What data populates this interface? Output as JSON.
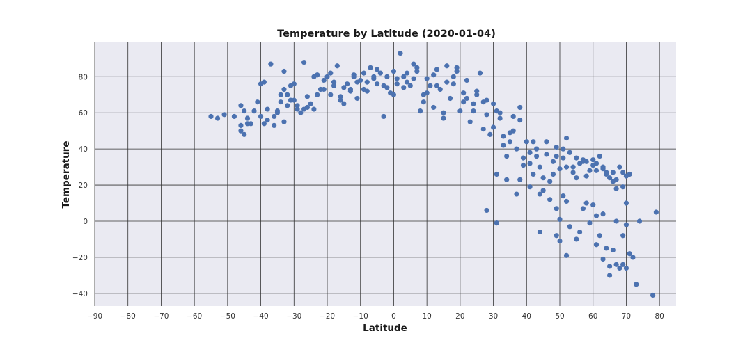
{
  "colors": {
    "background": "#eaeaf2",
    "grid": "#333333",
    "point": "#4c72b0"
  },
  "chart_data": {
    "type": "scatter",
    "title": "Temperature by Latitude (2020-01-04)",
    "xlabel": "Latitude",
    "ylabel": "Temperature",
    "xlim": [
      -90,
      85
    ],
    "ylim": [
      -47,
      99
    ],
    "xticks": [
      -90,
      -80,
      -70,
      -60,
      -50,
      -40,
      -30,
      -20,
      -10,
      0,
      10,
      20,
      30,
      40,
      50,
      60,
      70,
      80
    ],
    "yticks": [
      -40,
      -20,
      0,
      20,
      40,
      60,
      80
    ],
    "grid": true,
    "legend": "none",
    "series": [
      {
        "points": [
          [
            -55,
            58
          ],
          [
            -53,
            57
          ],
          [
            -51,
            59
          ],
          [
            -46,
            64
          ],
          [
            -45,
            61
          ],
          [
            -46,
            53
          ],
          [
            -46,
            50
          ],
          [
            -45,
            48
          ],
          [
            -43,
            54
          ],
          [
            -42,
            61
          ],
          [
            -41,
            66
          ],
          [
            -40,
            76
          ],
          [
            -39,
            77
          ],
          [
            -38,
            56
          ],
          [
            -37,
            87
          ],
          [
            -36,
            58
          ],
          [
            -35,
            60
          ],
          [
            -34,
            70
          ],
          [
            -34,
            66
          ],
          [
            -33,
            83
          ],
          [
            -33,
            73
          ],
          [
            -32,
            70
          ],
          [
            -32,
            64
          ],
          [
            -31,
            75
          ],
          [
            -30,
            76
          ],
          [
            -29,
            64
          ],
          [
            -28,
            60
          ],
          [
            -27,
            88
          ],
          [
            -26,
            69
          ],
          [
            -25,
            65
          ],
          [
            -24,
            62
          ],
          [
            -23,
            81
          ],
          [
            -22,
            73
          ],
          [
            -21,
            78
          ],
          [
            -20,
            80
          ],
          [
            -19,
            70
          ],
          [
            -18,
            75
          ],
          [
            -17,
            86
          ],
          [
            -16,
            69
          ],
          [
            -15,
            65
          ],
          [
            -14,
            76
          ],
          [
            -13,
            72
          ],
          [
            -12,
            81
          ],
          [
            -11,
            68
          ],
          [
            -10,
            78
          ],
          [
            -9,
            82
          ],
          [
            -8,
            72
          ],
          [
            -7,
            85
          ],
          [
            -6,
            79
          ],
          [
            -5,
            76
          ],
          [
            -4,
            82
          ],
          [
            -3,
            58
          ],
          [
            -2,
            80
          ],
          [
            -1,
            71
          ],
          [
            0,
            83
          ],
          [
            1,
            79
          ],
          [
            2,
            93
          ],
          [
            3,
            80
          ],
          [
            4,
            82
          ],
          [
            5,
            75
          ],
          [
            6,
            87
          ],
          [
            7,
            85
          ],
          [
            8,
            61
          ],
          [
            9,
            70
          ],
          [
            10,
            79
          ],
          [
            11,
            75
          ],
          [
            12,
            81
          ],
          [
            13,
            84
          ],
          [
            14,
            73
          ],
          [
            15,
            60
          ],
          [
            16,
            86
          ],
          [
            17,
            68
          ],
          [
            18,
            76
          ],
          [
            19,
            83
          ],
          [
            20,
            61
          ],
          [
            21,
            66
          ],
          [
            22,
            78
          ],
          [
            23,
            55
          ],
          [
            24,
            61
          ],
          [
            25,
            70
          ],
          [
            26,
            82
          ],
          [
            27,
            66
          ],
          [
            28,
            59
          ],
          [
            29,
            48
          ],
          [
            30,
            52
          ],
          [
            31,
            61
          ],
          [
            32,
            57
          ],
          [
            33,
            47
          ],
          [
            34,
            36
          ],
          [
            35,
            44
          ],
          [
            36,
            58
          ],
          [
            37,
            40
          ],
          [
            38,
            63
          ],
          [
            39,
            31
          ],
          [
            40,
            44
          ],
          [
            41,
            38
          ],
          [
            42,
            26
          ],
          [
            43,
            40
          ],
          [
            44,
            30
          ],
          [
            45,
            24
          ],
          [
            46,
            44
          ],
          [
            47,
            22
          ],
          [
            48,
            33
          ],
          [
            49,
            41
          ],
          [
            50,
            29
          ],
          [
            51,
            35
          ],
          [
            52,
            46
          ],
          [
            53,
            38
          ],
          [
            54,
            30
          ],
          [
            55,
            24
          ],
          [
            56,
            32
          ],
          [
            57,
            34
          ],
          [
            58,
            33
          ],
          [
            59,
            28
          ],
          [
            60,
            31
          ],
          [
            61,
            28
          ],
          [
            62,
            36
          ],
          [
            63,
            30
          ],
          [
            64,
            27
          ],
          [
            65,
            24
          ],
          [
            66,
            27
          ],
          [
            67,
            23
          ],
          [
            68,
            30
          ],
          [
            69,
            19
          ],
          [
            70,
            25
          ],
          [
            71,
            26
          ],
          [
            -44,
            57
          ],
          [
            -39,
            54
          ],
          [
            -36,
            53
          ],
          [
            -33,
            55
          ],
          [
            -30,
            67
          ],
          [
            -27,
            62
          ],
          [
            -24,
            80
          ],
          [
            -21,
            73
          ],
          [
            -18,
            77
          ],
          [
            -15,
            74
          ],
          [
            -12,
            80
          ],
          [
            -9,
            73
          ],
          [
            -6,
            80
          ],
          [
            -3,
            75
          ],
          [
            0,
            70
          ],
          [
            3,
            74
          ],
          [
            6,
            79
          ],
          [
            9,
            66
          ],
          [
            12,
            63
          ],
          [
            15,
            57
          ],
          [
            18,
            80
          ],
          [
            21,
            71
          ],
          [
            24,
            65
          ],
          [
            27,
            51
          ],
          [
            30,
            65
          ],
          [
            33,
            42
          ],
          [
            36,
            50
          ],
          [
            39,
            35
          ],
          [
            42,
            44
          ],
          [
            45,
            17
          ],
          [
            48,
            26
          ],
          [
            51,
            40
          ],
          [
            54,
            27
          ],
          [
            57,
            33
          ],
          [
            60,
            34
          ],
          [
            63,
            29
          ],
          [
            66,
            22
          ],
          [
            69,
            27
          ],
          [
            31,
            26
          ],
          [
            34,
            23
          ],
          [
            37,
            15
          ],
          [
            38,
            23
          ],
          [
            41,
            19
          ],
          [
            44,
            15
          ],
          [
            47,
            12
          ],
          [
            49,
            7
          ],
          [
            50,
            1
          ],
          [
            51,
            14
          ],
          [
            52,
            11
          ],
          [
            53,
            -3
          ],
          [
            55,
            -10
          ],
          [
            56,
            -6
          ],
          [
            57,
            7
          ],
          [
            58,
            10
          ],
          [
            59,
            -1
          ],
          [
            60,
            9
          ],
          [
            61,
            3
          ],
          [
            62,
            -8
          ],
          [
            63,
            4
          ],
          [
            64,
            -15
          ],
          [
            65,
            -25
          ],
          [
            66,
            -16
          ],
          [
            67,
            0
          ],
          [
            68,
            -26
          ],
          [
            69,
            -8
          ],
          [
            70,
            -2
          ],
          [
            71,
            -18
          ],
          [
            72,
            -20
          ],
          [
            73,
            -35
          ],
          [
            74,
            0
          ],
          [
            78,
            -41
          ],
          [
            79,
            5
          ],
          [
            28,
            6
          ],
          [
            31,
            -1
          ],
          [
            44,
            -6
          ],
          [
            49,
            -8
          ],
          [
            50,
            -11
          ],
          [
            52,
            -19
          ],
          [
            61,
            -13
          ],
          [
            63,
            -21
          ],
          [
            65,
            -30
          ],
          [
            67,
            -24
          ],
          [
            69,
            -24
          ],
          [
            70,
            -26
          ],
          [
            -48,
            58
          ],
          [
            -44,
            54
          ],
          [
            -40,
            58
          ],
          [
            -38,
            62
          ],
          [
            -35,
            61
          ],
          [
            -31,
            67
          ],
          [
            -29,
            62
          ],
          [
            -26,
            63
          ],
          [
            -23,
            70
          ],
          [
            -19,
            82
          ],
          [
            -16,
            67
          ],
          [
            -13,
            73
          ],
          [
            -11,
            77
          ],
          [
            -8,
            77
          ],
          [
            -5,
            84
          ],
          [
            -2,
            74
          ],
          [
            1,
            76
          ],
          [
            4,
            77
          ],
          [
            7,
            83
          ],
          [
            10,
            71
          ],
          [
            13,
            75
          ],
          [
            16,
            77
          ],
          [
            19,
            85
          ],
          [
            22,
            68
          ],
          [
            25,
            72
          ],
          [
            28,
            67
          ],
          [
            32,
            60
          ],
          [
            35,
            49
          ],
          [
            38,
            56
          ],
          [
            41,
            32
          ],
          [
            43,
            36
          ],
          [
            46,
            37
          ],
          [
            49,
            36
          ],
          [
            52,
            30
          ],
          [
            55,
            35
          ],
          [
            58,
            25
          ],
          [
            61,
            32
          ],
          [
            64,
            26
          ],
          [
            67,
            18
          ],
          [
            70,
            10
          ]
        ]
      }
    ]
  }
}
